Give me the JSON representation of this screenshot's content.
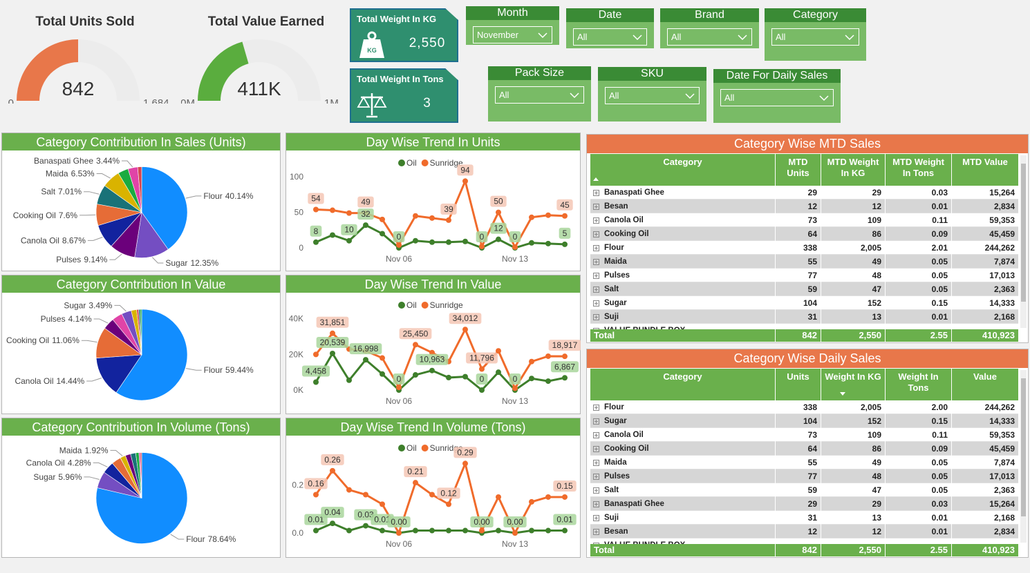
{
  "chart_data": [
    {
      "type": "gauge",
      "title": "Total Units Sold",
      "value": 842,
      "ylim": [
        0,
        1684
      ],
      "yticks": [
        0,
        {
          "value": 1684,
          "label": "1,684"
        }
      ],
      "color": "#e8774a",
      "track": "#ececec"
    },
    {
      "type": "gauge",
      "title": "Total Value Earned",
      "value": 410923,
      "value_label": "411K",
      "ylim": [
        0,
        1000000
      ],
      "yticks": [
        {
          "value": 0,
          "label": "0M"
        },
        {
          "value": 1000000,
          "label": "1M"
        }
      ],
      "color": "#5aad3e",
      "track": "#ececec"
    },
    {
      "type": "pie",
      "title": "Category Contribution In Sales (Units)",
      "categories": [
        "Flour",
        "Sugar",
        "Pulses",
        "Canola Oil",
        "Cooking Oil",
        "Salt",
        "Maida",
        null,
        "Banaspati Ghee",
        null
      ],
      "values": [
        40.14,
        12.35,
        9.14,
        8.67,
        7.6,
        7.01,
        6.53,
        3.68,
        3.44,
        1.43
      ],
      "value_labels": [
        "40.14%",
        "12.35%",
        "9.14%",
        "8.67%",
        "7.6%",
        "7.01%",
        "6.53%",
        null,
        "3.44%",
        null
      ],
      "colors": [
        "#118dff",
        "#744ec2",
        "#6b007b",
        "#12239e",
        "#e66c37",
        "#197278",
        "#d9b300",
        "#1aab40",
        "#e044a7",
        "#d64550"
      ]
    },
    {
      "type": "pie",
      "title": "Category Contribution In Value",
      "categories": [
        "Flour",
        "Canola Oil",
        "Cooking Oil",
        "Pulses",
        null,
        "Sugar",
        null,
        null,
        null,
        null
      ],
      "values": [
        59.44,
        14.44,
        11.06,
        4.14,
        3.71,
        3.49,
        1.92,
        0.69,
        0.58,
        0.53
      ],
      "value_labels": [
        "59.44%",
        "14.44%",
        "11.06%",
        "4.14%",
        null,
        "3.49%",
        null,
        null,
        null,
        null
      ],
      "colors": [
        "#118dff",
        "#12239e",
        "#e66c37",
        "#6b007b",
        "#e044a7",
        "#744ec2",
        "#d9b300",
        "#d64550",
        "#197278",
        "#1aab40"
      ]
    },
    {
      "type": "pie",
      "title": "Category Contribution In Volume (Tons)",
      "categories": [
        "Flour",
        "Sugar",
        "Canola Oil",
        null,
        "Maida",
        null,
        null,
        null,
        null,
        null
      ],
      "values": [
        78.64,
        5.96,
        4.28,
        3.37,
        1.92,
        1.88,
        1.84,
        1.14,
        0.51,
        0.47
      ],
      "value_labels": [
        "78.64%",
        "5.96%",
        "4.28%",
        null,
        "1.92%",
        null,
        null,
        null,
        null,
        null
      ],
      "colors": [
        "#118dff",
        "#744ec2",
        "#12239e",
        "#e66c37",
        "#d9b300",
        "#6b007b",
        "#197278",
        "#1aab40",
        "#e044a7",
        "#d64550"
      ]
    },
    {
      "type": "line",
      "title": "Day Wise Trend In Units",
      "categories": [
        null,
        null,
        null,
        null,
        null,
        "Nov 06",
        null,
        null,
        null,
        null,
        null,
        null,
        "Nov 13",
        null,
        null,
        null
      ],
      "ylim": [
        0,
        108
      ],
      "yticks": [
        0,
        50,
        100
      ],
      "legend": "top",
      "series": [
        {
          "name": "Oil",
          "color": "#3e7f2b",
          "label_color": "#a9d69c",
          "values": [
            8,
            18,
            10,
            32,
            20,
            0,
            10,
            8,
            8,
            9,
            0,
            12,
            0,
            7,
            6,
            5
          ],
          "value_labels": [
            "8",
            null,
            "10",
            "32",
            null,
            "0",
            null,
            null,
            null,
            null,
            "0",
            "12",
            "0",
            null,
            null,
            "5"
          ]
        },
        {
          "name": "Sunridge",
          "color": "#f06b2b",
          "label_color": "#f4c7b5",
          "values": [
            54,
            53,
            49,
            49,
            40,
            4,
            45,
            42,
            39,
            94,
            2,
            50,
            1,
            43,
            46,
            45
          ],
          "value_labels": [
            "54",
            null,
            null,
            "49",
            null,
            null,
            null,
            null,
            "39",
            "94",
            null,
            "50",
            null,
            null,
            null,
            "45"
          ]
        }
      ]
    },
    {
      "type": "line",
      "title": "Day Wise Trend In Value",
      "categories": [
        null,
        null,
        null,
        null,
        null,
        "Nov 06",
        null,
        null,
        null,
        null,
        null,
        null,
        "Nov 13",
        null,
        null,
        null
      ],
      "ylim": [
        0,
        43000
      ],
      "yticks": [
        {
          "value": 0,
          "label": "0K"
        },
        {
          "value": 20000,
          "label": "20K"
        },
        {
          "value": 40000,
          "label": "40K"
        }
      ],
      "legend": "top",
      "series": [
        {
          "name": "Oil",
          "color": "#3e7f2b",
          "label_color": "#a9d69c",
          "values": [
            4458,
            20539,
            5500,
            16998,
            9000,
            0,
            8500,
            10963,
            7000,
            7500,
            0,
            10000,
            0,
            6500,
            5000,
            6867
          ],
          "value_labels": [
            "4,458",
            "20,539",
            null,
            "16,998",
            null,
            "0",
            null,
            "10,963",
            null,
            null,
            "0",
            null,
            "0",
            null,
            null,
            "6,867"
          ]
        },
        {
          "name": "Sunridge",
          "color": "#f06b2b",
          "label_color": "#f4c7b5",
          "values": [
            20000,
            31851,
            23000,
            22000,
            18000,
            1500,
            25450,
            21000,
            16000,
            34012,
            11796,
            22000,
            1000,
            16000,
            19000,
            18917
          ],
          "value_labels": [
            null,
            "31,851",
            null,
            null,
            null,
            null,
            "25,450",
            null,
            null,
            "34,012",
            "11,796",
            null,
            null,
            null,
            null,
            "18,917"
          ]
        }
      ]
    },
    {
      "type": "line",
      "title": "Day Wise Trend In Volume (Tons)",
      "categories": [
        null,
        null,
        null,
        null,
        null,
        "Nov 06",
        null,
        null,
        null,
        null,
        null,
        null,
        "Nov 13",
        null,
        null,
        null
      ],
      "ylim": [
        0,
        0.32
      ],
      "yticks": [
        {
          "value": 0,
          "label": "0.0"
        },
        0.2
      ],
      "legend": "top",
      "series": [
        {
          "name": "Oil",
          "color": "#3e7f2b",
          "label_color": "#a9d69c",
          "values": [
            0.01,
            0.04,
            0.01,
            0.03,
            0.01,
            0,
            0.01,
            0.01,
            0.01,
            0.01,
            0,
            0.01,
            0,
            0.01,
            0.01,
            0.01
          ],
          "value_labels": [
            "0.01",
            "0.04",
            null,
            "0.03",
            "0.01",
            "0.00",
            null,
            null,
            null,
            null,
            "0.00",
            null,
            "0.00",
            null,
            null,
            "0.01"
          ]
        },
        {
          "name": "Sunridge",
          "color": "#f06b2b",
          "label_color": "#f4c7b5",
          "values": [
            0.16,
            0.26,
            0.18,
            0.16,
            0.12,
            0,
            0.21,
            0.16,
            0.12,
            0.29,
            0.01,
            0.15,
            0,
            0.13,
            0.15,
            0.15
          ],
          "value_labels": [
            "0.16",
            "0.26",
            null,
            null,
            null,
            null,
            "0.21",
            null,
            "0.12",
            "0.29",
            null,
            null,
            null,
            null,
            null,
            "0.15"
          ]
        }
      ]
    }
  ],
  "cards": [
    {
      "title": "Total Weight In KG",
      "value": "2,550",
      "icon_text": "KG"
    },
    {
      "title": "Total Weight In Tons",
      "value": "3"
    }
  ],
  "slicers": [
    {
      "title": "Month",
      "value": "November"
    },
    {
      "title": "Date",
      "value": "All"
    },
    {
      "title": "Brand",
      "value": "All"
    },
    {
      "title": "Category",
      "value": "All"
    },
    {
      "title": "Pack Size",
      "value": "All"
    },
    {
      "title": "SKU",
      "value": "All"
    },
    {
      "title": "Date For Daily Sales",
      "value": "All"
    }
  ],
  "tables": [
    {
      "title": "Category Wise MTD Sales",
      "columns": [
        "Category",
        "MTD Units",
        "MTD Weight In KG",
        "MTD Weight In Tons",
        "MTD Value"
      ],
      "rows": [
        [
          "Banaspati Ghee",
          "29",
          "29",
          "0.03",
          "15,264"
        ],
        [
          "Besan",
          "12",
          "12",
          "0.01",
          "2,834"
        ],
        [
          "Canola Oil",
          "73",
          "109",
          "0.11",
          "59,353"
        ],
        [
          "Cooking Oil",
          "64",
          "86",
          "0.09",
          "45,459"
        ],
        [
          "Flour",
          "338",
          "2,005",
          "2.01",
          "244,262"
        ],
        [
          "Maida",
          "55",
          "49",
          "0.05",
          "7,874"
        ],
        [
          "Pulses",
          "77",
          "48",
          "0.05",
          "17,013"
        ],
        [
          "Salt",
          "59",
          "47",
          "0.05",
          "2,363"
        ],
        [
          "Sugar",
          "104",
          "152",
          "0.15",
          "14,333"
        ],
        [
          "Suji",
          "31",
          "13",
          "0.01",
          "2,168"
        ],
        [
          "VALUE BUNDLE BOX"
        ]
      ],
      "total": [
        "Total",
        "842",
        "2,550",
        "2.55",
        "410,923"
      ]
    },
    {
      "title": "Category Wise Daily Sales",
      "columns": [
        "Category",
        "Units",
        "Weight In KG",
        "Weight In Tons",
        "Value"
      ],
      "rows": [
        [
          "Flour",
          "338",
          "2,005",
          "2.00",
          "244,262"
        ],
        [
          "Sugar",
          "104",
          "152",
          "0.15",
          "14,333"
        ],
        [
          "Canola Oil",
          "73",
          "109",
          "0.11",
          "59,353"
        ],
        [
          "Cooking Oil",
          "64",
          "86",
          "0.09",
          "45,459"
        ],
        [
          "Maida",
          "55",
          "49",
          "0.05",
          "7,874"
        ],
        [
          "Pulses",
          "77",
          "48",
          "0.05",
          "17,013"
        ],
        [
          "Salt",
          "59",
          "47",
          "0.05",
          "2,363"
        ],
        [
          "Banaspati Ghee",
          "29",
          "29",
          "0.03",
          "15,264"
        ],
        [
          "Suji",
          "31",
          "13",
          "0.01",
          "2,168"
        ],
        [
          "Besan",
          "12",
          "12",
          "0.01",
          "2,834"
        ],
        [
          "VALUE BUNDLE BOX"
        ]
      ],
      "total": [
        "Total",
        "842",
        "2,550",
        "2.55",
        "410,923"
      ]
    }
  ]
}
